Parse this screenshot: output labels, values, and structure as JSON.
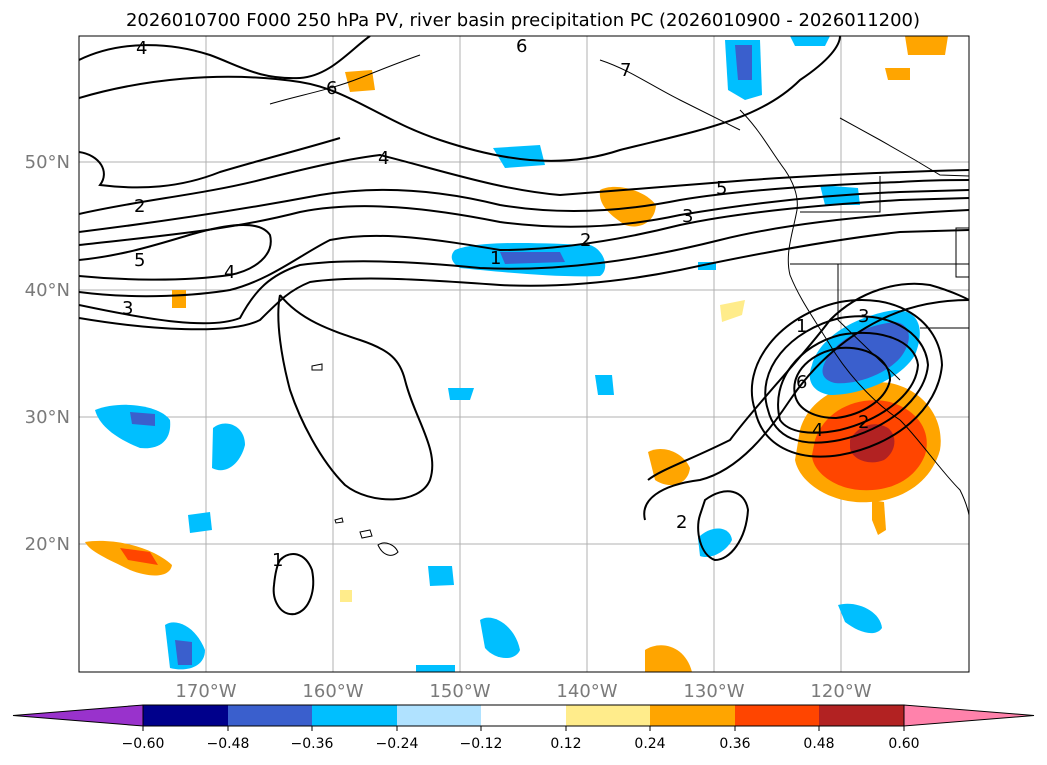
{
  "title": "2026010700 F000 250 hPa PV, river basin precipitation PC (2026010900 - 2026011200)",
  "lat_labels": [
    "50°N",
    "40°N",
    "30°N",
    "20°N"
  ],
  "lon_labels": [
    "170°W",
    "160°W",
    "150°W",
    "140°W",
    "130°W",
    "120°W"
  ],
  "contour_labels": [
    "4",
    "6",
    "7",
    "6",
    "4",
    "2",
    "5",
    "3",
    "4",
    "1",
    "2",
    "3",
    "5",
    "1",
    "3",
    "6",
    "4",
    "2",
    "2",
    "1"
  ],
  "colorbar": {
    "tick_labels": [
      "−0.60",
      "−0.48",
      "−0.36",
      "−0.24",
      "−0.12",
      "0.12",
      "0.24",
      "0.36",
      "0.48",
      "0.60"
    ],
    "colors": [
      "#9932cc",
      "#00008b",
      "#3a5fcd",
      "#00bfff",
      "#b0e2ff",
      "#ffffff",
      "#ffec8b",
      "#ffa500",
      "#ff4500",
      "#b22222",
      "#ff82ab"
    ]
  }
}
